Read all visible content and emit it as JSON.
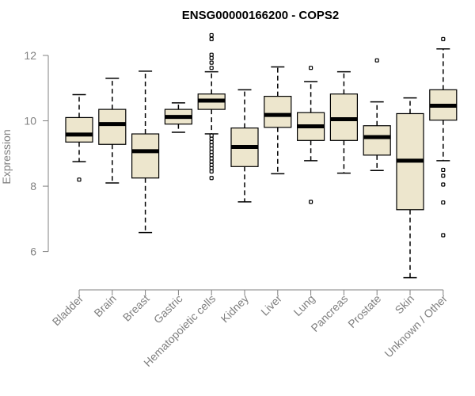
{
  "chart_data": {
    "type": "boxplot",
    "title": "ENSG00000166200 - COPS2",
    "xlabel": "",
    "ylabel": "Expression",
    "ylim": [
      4.9,
      12.8
    ],
    "yticks": [
      6,
      8,
      10,
      12
    ],
    "grid": false,
    "legend": "none",
    "colors": {
      "box_fill": "#ede6cd",
      "box_stroke": "#000000",
      "axis": "#808080",
      "title": "#000000"
    },
    "categories": [
      "Bladder",
      "Brain",
      "Breast",
      "Gastric",
      "Hematopoietic cells",
      "Kidney",
      "Liver",
      "Lung",
      "Pancreas",
      "Prostate",
      "Skin",
      "Unknown / Other"
    ],
    "boxes": [
      {
        "category": "Bladder",
        "whisker_low": 8.75,
        "q1": 9.35,
        "median": 9.58,
        "q3": 10.1,
        "whisker_high": 10.8,
        "outliers": [
          8.2
        ]
      },
      {
        "category": "Brain",
        "whisker_low": 8.1,
        "q1": 9.28,
        "median": 9.9,
        "q3": 10.35,
        "whisker_high": 11.3,
        "outliers": []
      },
      {
        "category": "Breast",
        "whisker_low": 6.58,
        "q1": 8.25,
        "median": 9.07,
        "q3": 9.6,
        "whisker_high": 11.52,
        "outliers": []
      },
      {
        "category": "Gastric",
        "whisker_low": 9.65,
        "q1": 9.9,
        "median": 10.12,
        "q3": 10.35,
        "whisker_high": 10.55,
        "outliers": []
      },
      {
        "category": "Hematopoietic cells",
        "whisker_low": 9.6,
        "q1": 10.35,
        "median": 10.62,
        "q3": 10.82,
        "whisker_high": 11.5,
        "outliers": [
          12.62,
          12.5,
          12.02,
          11.92,
          11.78,
          11.62,
          9.55,
          9.45,
          9.35,
          9.25,
          9.15,
          9.05,
          8.95,
          8.85,
          8.75,
          8.65,
          8.55,
          8.45,
          8.25
        ]
      },
      {
        "category": "Kidney",
        "whisker_low": 7.52,
        "q1": 8.6,
        "median": 9.2,
        "q3": 9.78,
        "whisker_high": 10.95,
        "outliers": []
      },
      {
        "category": "Liver",
        "whisker_low": 8.38,
        "q1": 9.8,
        "median": 10.18,
        "q3": 10.75,
        "whisker_high": 11.65,
        "outliers": []
      },
      {
        "category": "Lung",
        "whisker_low": 8.78,
        "q1": 9.4,
        "median": 9.83,
        "q3": 10.25,
        "whisker_high": 11.2,
        "outliers": [
          11.62,
          7.52
        ]
      },
      {
        "category": "Pancreas",
        "whisker_low": 8.4,
        "q1": 9.4,
        "median": 10.05,
        "q3": 10.82,
        "whisker_high": 11.5,
        "outliers": []
      },
      {
        "category": "Prostate",
        "whisker_low": 8.48,
        "q1": 8.95,
        "median": 9.5,
        "q3": 9.85,
        "whisker_high": 10.58,
        "outliers": [
          11.85
        ]
      },
      {
        "category": "Skin",
        "whisker_low": 5.2,
        "q1": 7.28,
        "median": 8.78,
        "q3": 10.22,
        "whisker_high": 10.7,
        "outliers": []
      },
      {
        "category": "Unknown / Other",
        "whisker_low": 8.78,
        "q1": 10.02,
        "median": 10.46,
        "q3": 10.95,
        "whisker_high": 12.2,
        "outliers": [
          12.5,
          8.5,
          8.32,
          8.05,
          7.5,
          6.5
        ]
      }
    ]
  }
}
